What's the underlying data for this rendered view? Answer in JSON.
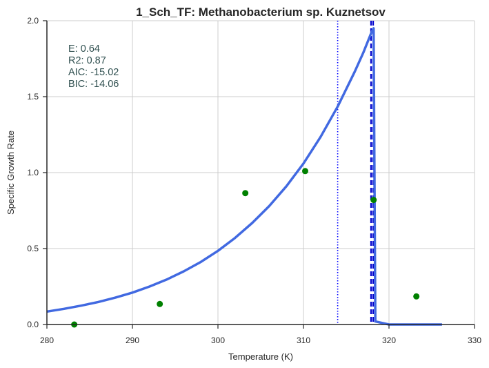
{
  "chart_data": {
    "type": "scatter",
    "title": "1_Sch_TF: Methanobacterium sp. Kuznetsov",
    "xlabel": "Temperature (K)",
    "ylabel": "Specific Growth Rate",
    "xlim": [
      280,
      330
    ],
    "ylim": [
      0,
      2.0
    ],
    "xticks": [
      280,
      290,
      300,
      310,
      320,
      330
    ],
    "yticks": [
      0.0,
      0.5,
      1.0,
      1.5,
      2.0
    ],
    "xtick_labels": [
      "280",
      "290",
      "300",
      "310",
      "320",
      "330"
    ],
    "ytick_labels": [
      "0.0",
      "0.5",
      "1.0",
      "1.5",
      "2.0"
    ],
    "grid": true,
    "points": {
      "color": "#008000",
      "x": [
        283.2,
        293.2,
        303.2,
        310.2,
        318.2,
        323.2
      ],
      "y": [
        0.0,
        0.135,
        0.865,
        1.01,
        0.82,
        0.185
      ]
    },
    "fit_curve": {
      "color": "#4169e1",
      "x": [
        280,
        282,
        284,
        286,
        288,
        290,
        292,
        294,
        296,
        298,
        300,
        302,
        304,
        306,
        308,
        310,
        312,
        314,
        316,
        317,
        318,
        318.2,
        318.4,
        320,
        322,
        324,
        326.2
      ],
      "y": [
        0.085,
        0.103,
        0.124,
        0.148,
        0.177,
        0.21,
        0.25,
        0.296,
        0.35,
        0.412,
        0.485,
        0.57,
        0.668,
        0.78,
        0.91,
        1.06,
        1.235,
        1.435,
        1.665,
        1.79,
        1.93,
        1.95,
        0.02,
        0.0,
        0.0,
        0.0,
        0.0
      ]
    },
    "vlines": [
      {
        "x": 314.0,
        "style": "dotted",
        "color": "#0000ff"
      },
      {
        "x": 317.9,
        "style": "dashed",
        "color": "#0000cd"
      },
      {
        "x": 318.15,
        "style": "dashed",
        "color": "#0000cd"
      }
    ],
    "annotations": [
      {
        "label": "E:",
        "value": "0.64"
      },
      {
        "label": "R2:",
        "value": "0.87"
      },
      {
        "label": "AIC:",
        "value": "-15.02"
      },
      {
        "label": "BIC:",
        "value": "-14.06"
      }
    ]
  }
}
